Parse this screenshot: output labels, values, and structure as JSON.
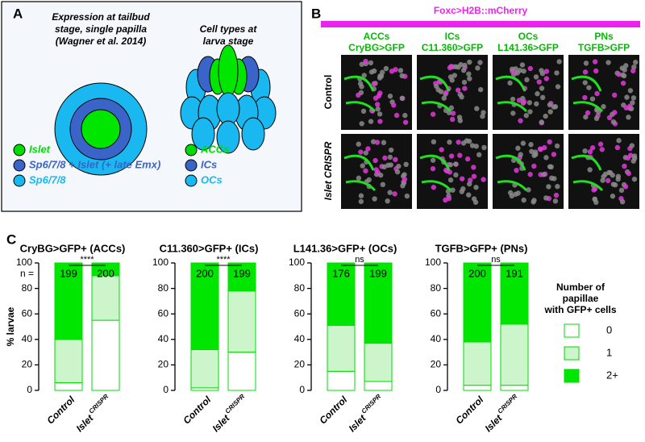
{
  "panel_labels": [
    "A",
    "B",
    "C"
  ],
  "panel_a": {
    "left_title": [
      "Expression at tailbud",
      "stage, single papilla",
      "(Wagner et al. 2014)"
    ],
    "right_title": [
      "Cell types at",
      "larva stage"
    ],
    "legend_left": [
      {
        "text": "Islet",
        "color": "#00dd00"
      },
      {
        "text": "Sp6/7/8 + Islet (+ late Emx)",
        "color": "#3a64c8"
      },
      {
        "text": "Sp6/7/8",
        "color": "#19b8f0"
      }
    ],
    "legend_right": [
      {
        "text": "ACCs",
        "color": "#00dd00"
      },
      {
        "text": "ICs",
        "color": "#3a64c8"
      },
      {
        "text": "OCs",
        "color": "#19b8f0"
      }
    ]
  },
  "panel_b": {
    "title": "Foxc>H2B::mCherry",
    "columns": [
      {
        "name": "ACCs",
        "reporter": "CryBG>GFP"
      },
      {
        "name": "ICs",
        "reporter": "C11.360>GFP"
      },
      {
        "name": "OCs",
        "reporter": "L141.36>GFP"
      },
      {
        "name": "PNs",
        "reporter": "TGFB>GFP"
      }
    ],
    "rows": [
      "Control",
      "Islet CRISPR"
    ]
  },
  "n_label": "n =",
  "chart_data": [
    {
      "type": "stacked_bar",
      "title": "CryBG>GFP+ (ACCs)",
      "ylabel": "% larvae",
      "legend_title": [
        "Number of",
        "papillae",
        "with GFP+ cells"
      ],
      "categories": [
        "Control",
        "Islet CRISPR"
      ],
      "n": [
        199,
        200
      ],
      "significance": "****",
      "ylim": [
        0,
        100
      ],
      "yticks": [
        0,
        20,
        40,
        60,
        80,
        100
      ],
      "series": [
        {
          "name": "0",
          "color": "#ffffff",
          "values": [
            6,
            55
          ]
        },
        {
          "name": "1",
          "color": "#ccf5cc",
          "values": [
            34,
            35
          ]
        },
        {
          "name": "2+",
          "color": "#00e600",
          "values": [
            60,
            10
          ]
        }
      ]
    },
    {
      "type": "stacked_bar",
      "title": "C11.360>GFP+ (ICs)",
      "categories": [
        "Control",
        "Islet CRISPR"
      ],
      "n": [
        200,
        199
      ],
      "significance": "****",
      "ylim": [
        0,
        100
      ],
      "yticks": [
        0,
        20,
        40,
        60,
        80,
        100
      ],
      "series": [
        {
          "name": "0",
          "color": "#ffffff",
          "values": [
            2,
            30
          ]
        },
        {
          "name": "1",
          "color": "#ccf5cc",
          "values": [
            30,
            48
          ]
        },
        {
          "name": "2+",
          "color": "#00e600",
          "values": [
            68,
            22
          ]
        }
      ]
    },
    {
      "type": "stacked_bar",
      "title": "L141.36>GFP+ (OCs)",
      "categories": [
        "Control",
        "Islet CRISPR"
      ],
      "n": [
        176,
        199
      ],
      "significance": "ns",
      "ylim": [
        0,
        100
      ],
      "yticks": [
        0,
        20,
        40,
        60,
        80,
        100
      ],
      "series": [
        {
          "name": "0",
          "color": "#ffffff",
          "values": [
            15,
            7
          ]
        },
        {
          "name": "1",
          "color": "#ccf5cc",
          "values": [
            36,
            30
          ]
        },
        {
          "name": "2+",
          "color": "#00e600",
          "values": [
            49,
            63
          ]
        }
      ]
    },
    {
      "type": "stacked_bar",
      "title": "TGFB>GFP+ (PNs)",
      "categories": [
        "Control",
        "Islet CRISPR"
      ],
      "n": [
        200,
        191
      ],
      "significance": "ns",
      "ylim": [
        0,
        100
      ],
      "yticks": [
        0,
        20,
        40,
        60,
        80,
        100
      ],
      "series": [
        {
          "name": "0",
          "color": "#ffffff",
          "values": [
            4,
            4
          ]
        },
        {
          "name": "1",
          "color": "#ccf5cc",
          "values": [
            34,
            48
          ]
        },
        {
          "name": "2+",
          "color": "#00e600",
          "values": [
            62,
            48
          ]
        }
      ]
    }
  ]
}
